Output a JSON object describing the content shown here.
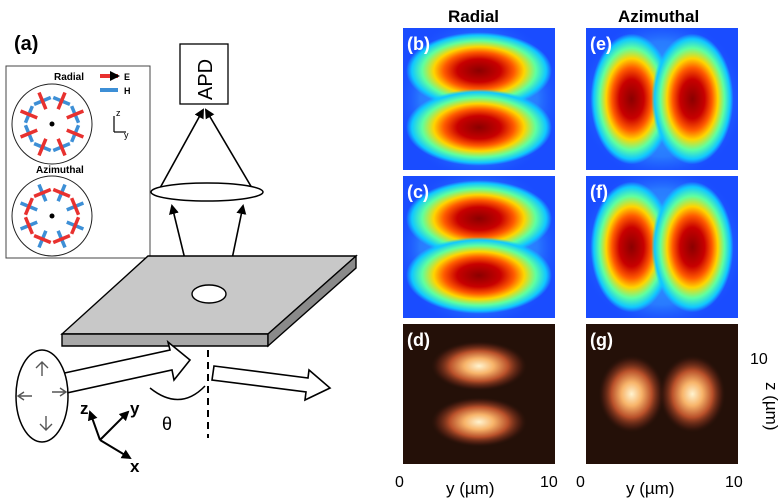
{
  "panel_a": {
    "label": "(a)",
    "inset": {
      "radial_title": "Radial",
      "azimuthal_title": "Azimuthal",
      "legend": [
        {
          "label": "E",
          "color": "#e8312f"
        },
        {
          "label": "H",
          "color": "#3d8fd6"
        }
      ],
      "axis_z": "z",
      "axis_y": "y"
    },
    "detector_label": "APD",
    "angle_label": "θ",
    "axes": {
      "x": "x",
      "y": "y",
      "z": "z"
    }
  },
  "column_titles": {
    "radial": "Radial",
    "azimuthal": "Azimuthal"
  },
  "panels": [
    {
      "label": "(b)",
      "style": "simulation",
      "mode": "radial"
    },
    {
      "label": "(c)",
      "style": "simulation-coarse",
      "mode": "radial"
    },
    {
      "label": "(d)",
      "style": "measurement",
      "mode": "radial"
    },
    {
      "label": "(e)",
      "style": "simulation",
      "mode": "azimuthal"
    },
    {
      "label": "(f)",
      "style": "simulation-coarse",
      "mode": "azimuthal"
    },
    {
      "label": "(g)",
      "style": "measurement",
      "mode": "azimuthal"
    }
  ],
  "axis_labels": {
    "y_left": {
      "start": "0",
      "end": "10",
      "label": "y (µm)"
    },
    "y_right": {
      "start": "0",
      "end": "10",
      "label": "y (µm)"
    },
    "z": {
      "end": "10",
      "label": "z (µm)"
    }
  },
  "colors": {
    "jet_background": "#1a4cff",
    "field_core": "#8b0000",
    "measurement_background": "#241008",
    "measurement_glow": "#ffe8b0"
  }
}
